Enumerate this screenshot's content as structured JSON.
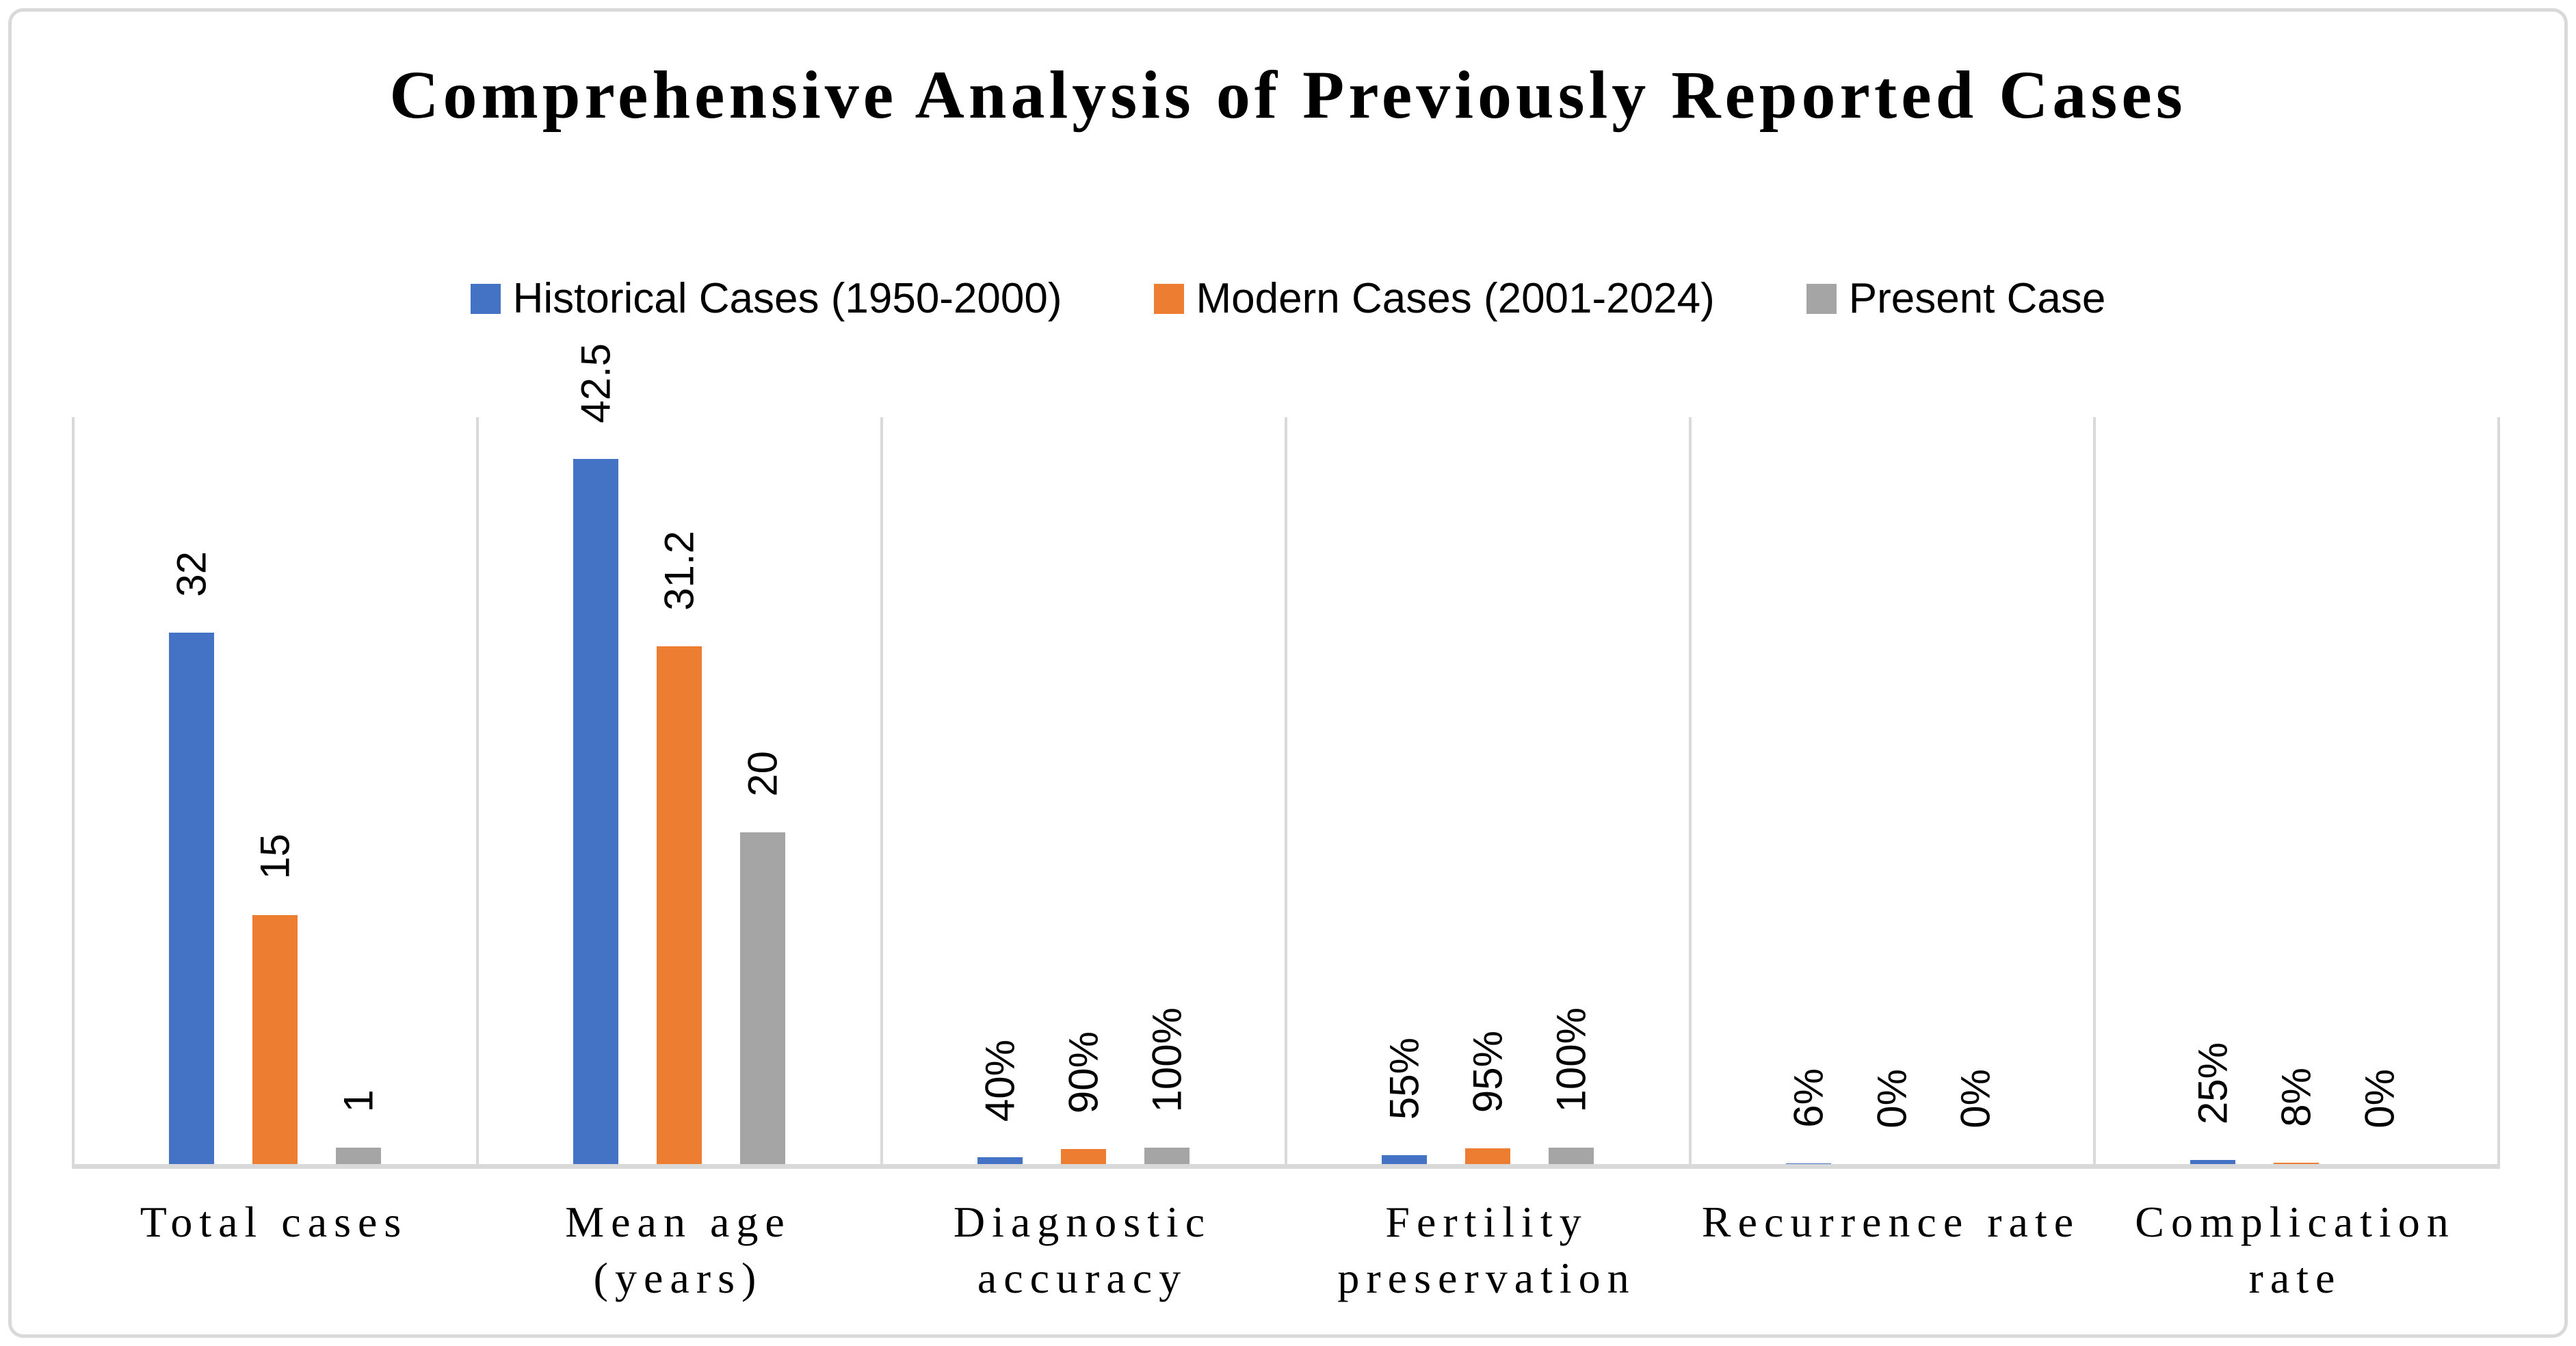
{
  "title": "Comprehensive Analysis of Previously Reported Cases",
  "colors": {
    "historical_blue": "#4472C4",
    "modern_orange": "#ED7D31",
    "present_gray": "#A5A5A5",
    "grid_gray": "#D9D9D9",
    "text_black": "#000000",
    "background": "#FFFFFF"
  },
  "legend": [
    {
      "label": "Historical Cases (1950-2000)",
      "color": "#4472C4",
      "swatch": "square-icon"
    },
    {
      "label": "Modern Cases (2001-2024)",
      "color": "#ED7D31",
      "swatch": "square-icon"
    },
    {
      "label": "Present Case",
      "color": "#A5A5A5",
      "swatch": "square-icon"
    }
  ],
  "chart_data": {
    "type": "bar",
    "title": "Comprehensive Analysis of Previously Reported Cases",
    "xlabel": "",
    "ylabel": "",
    "ylim": [
      0,
      45
    ],
    "grid": "vertical-category-separators-only",
    "legend_position": "top-center",
    "value_axis_hidden": true,
    "note_on_scale": "percent values are plotted as fractions of 1 on the hidden 0-45 value axis",
    "categories": [
      "Total cases",
      "Mean age (years)",
      "Diagnostic accuracy",
      "Fertility preservation",
      "Recurrence rate",
      "Complication rate"
    ],
    "series": [
      {
        "name": "Historical Cases (1950-2000)",
        "color": "#4472C4",
        "labels": [
          "32",
          "42.5",
          "40%",
          "55%",
          "6%",
          "25%"
        ],
        "plotted": [
          32,
          42.5,
          0.4,
          0.55,
          0.06,
          0.25
        ]
      },
      {
        "name": "Modern Cases (2001-2024)",
        "color": "#ED7D31",
        "labels": [
          "15",
          "31.2",
          "90%",
          "95%",
          "0%",
          "8%"
        ],
        "plotted": [
          15,
          31.2,
          0.9,
          0.95,
          0,
          0.08
        ]
      },
      {
        "name": "Present Case",
        "color": "#A5A5A5",
        "labels": [
          "1",
          "20",
          "100%",
          "100%",
          "0%",
          "0%"
        ],
        "plotted": [
          1,
          20,
          1,
          1,
          0,
          0
        ]
      }
    ],
    "groups": [
      {
        "category": "Total cases",
        "axis_text": "Total cases",
        "bars": [
          {
            "series": "Historical Cases (1950-2000)",
            "display": "32",
            "plotted": 32
          },
          {
            "series": "Modern Cases (2001-2024)",
            "display": "15",
            "plotted": 15
          },
          {
            "series": "Present Case",
            "display": "1",
            "plotted": 1
          }
        ]
      },
      {
        "category": "Mean age (years)",
        "axis_text": "Mean age\n(years)",
        "bars": [
          {
            "series": "Historical Cases (1950-2000)",
            "display": "42.5",
            "plotted": 42.5
          },
          {
            "series": "Modern Cases (2001-2024)",
            "display": "31.2",
            "plotted": 31.2
          },
          {
            "series": "Present Case",
            "display": "20",
            "plotted": 20
          }
        ]
      },
      {
        "category": "Diagnostic accuracy",
        "axis_text": "Diagnostic\naccuracy",
        "bars": [
          {
            "series": "Historical Cases (1950-2000)",
            "display": "40%",
            "plotted": 0.4
          },
          {
            "series": "Modern Cases (2001-2024)",
            "display": "90%",
            "plotted": 0.9
          },
          {
            "series": "Present Case",
            "display": "100%",
            "plotted": 1
          }
        ]
      },
      {
        "category": "Fertility preservation",
        "axis_text": "Fertility\npreservation",
        "bars": [
          {
            "series": "Historical Cases (1950-2000)",
            "display": "55%",
            "plotted": 0.55
          },
          {
            "series": "Modern Cases (2001-2024)",
            "display": "95%",
            "plotted": 0.95
          },
          {
            "series": "Present Case",
            "display": "100%",
            "plotted": 1
          }
        ]
      },
      {
        "category": "Recurrence rate",
        "axis_text": "Recurrence rate",
        "bars": [
          {
            "series": "Historical Cases (1950-2000)",
            "display": "6%",
            "plotted": 0.06
          },
          {
            "series": "Modern Cases (2001-2024)",
            "display": "0%",
            "plotted": 0
          },
          {
            "series": "Present Case",
            "display": "0%",
            "plotted": 0
          }
        ]
      },
      {
        "category": "Complication rate",
        "axis_text": "Complication\nrate",
        "bars": [
          {
            "series": "Historical Cases (1950-2000)",
            "display": "25%",
            "plotted": 0.25
          },
          {
            "series": "Modern Cases (2001-2024)",
            "display": "8%",
            "plotted": 0.08
          },
          {
            "series": "Present Case",
            "display": "0%",
            "plotted": 0
          }
        ]
      }
    ]
  }
}
